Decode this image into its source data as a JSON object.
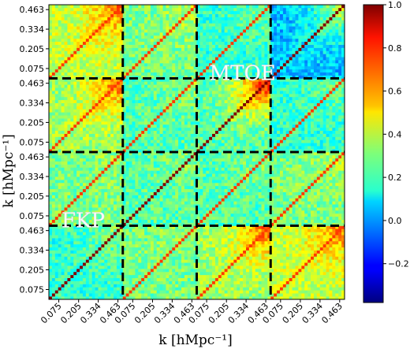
{
  "chart_data": {
    "type": "heatmap",
    "title": "",
    "xlabel": "k [hMpc⁻¹]",
    "ylabel": "k [hMpc⁻¹]",
    "block_count": 4,
    "bins_per_block": 24,
    "tick_labels": [
      "0.075",
      "0.205",
      "0.334",
      "0.463"
    ],
    "tick_values": [
      0.075,
      0.205,
      0.334,
      0.463
    ],
    "colorbar": {
      "range": [
        -0.38,
        1.0
      ],
      "ticks": [
        -0.2,
        0.0,
        0.2,
        0.4,
        0.6,
        0.8,
        1.0
      ],
      "tick_labels": [
        "−0.2",
        "0.0",
        "0.2",
        "0.4",
        "0.6",
        "0.8",
        "1.0"
      ],
      "colormap": "jet"
    },
    "annotations": [
      {
        "text": "FKP",
        "block": [
          0,
          1
        ]
      },
      {
        "text": "MTOE",
        "block": [
          2,
          3
        ]
      }
    ],
    "block_mean_correlation": [
      [
        0.2,
        0.3,
        0.35,
        0.4
      ],
      [
        0.3,
        0.25,
        0.25,
        0.3
      ],
      [
        0.35,
        0.25,
        0.25,
        0.2
      ],
      [
        0.4,
        0.3,
        0.2,
        0.05
      ]
    ],
    "block_high_k_correlation": [
      [
        0.35,
        0.35,
        0.75,
        0.7
      ],
      [
        0.35,
        0.35,
        0.35,
        0.4
      ],
      [
        0.75,
        0.35,
        0.9,
        0.3
      ],
      [
        0.7,
        0.4,
        0.3,
        0.45
      ]
    ],
    "divider_style": "black dashed lines between blocks"
  }
}
